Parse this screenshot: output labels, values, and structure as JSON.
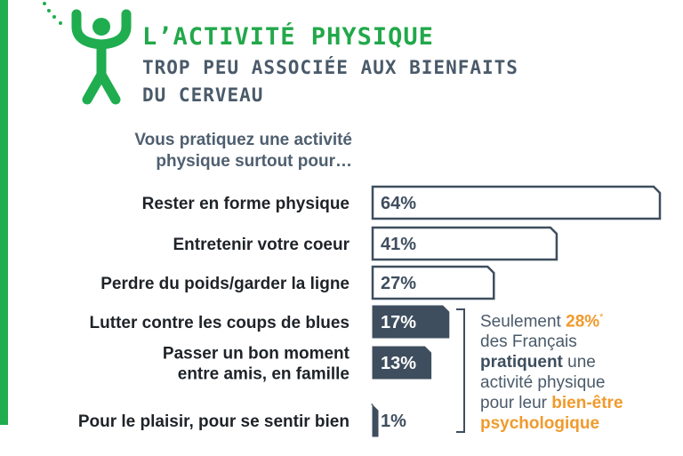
{
  "header": {
    "title": "L’ACTIVITÉ PHYSIQUE",
    "subtitle_line1": "TROP PEU ASSOCIÉE AUX BIENFAITS",
    "subtitle_line2": "DU CERVEAU"
  },
  "question": {
    "line1": "Vous pratiquez une activité",
    "line2": "physique surtout pour…"
  },
  "chart_data": {
    "type": "bar",
    "orientation": "horizontal",
    "categories": [
      [
        "Rester en forme physique"
      ],
      [
        "Entretenir votre coeur"
      ],
      [
        "Perdre du poids/garder la ligne"
      ],
      [
        "Lutter contre les coups de blues"
      ],
      [
        "Passer un bon moment",
        "entre amis, en famille"
      ],
      [
        "Pour le plaisir, pour se sentir bien"
      ]
    ],
    "values": [
      64,
      41,
      27,
      17,
      13,
      1
    ],
    "labels": [
      "64%",
      "41%",
      "27%",
      "17%",
      "13%",
      "1%"
    ],
    "highlighted": [
      false,
      false,
      false,
      true,
      true,
      true
    ],
    "xlim": [
      0,
      64
    ]
  },
  "callout": {
    "prefix": "Seulement ",
    "percent": "28%",
    "asterisk": "*",
    "line2": "des Français",
    "bold_word": "pratiquent",
    "line3_rest": " une",
    "line4": "activité physique",
    "line5_start": "pour leur ",
    "highlight1": "bien-être",
    "highlight2": "psychologique"
  },
  "colors": {
    "green": "#1fad4f",
    "slate": "#4f5f70",
    "orange": "#f09a2c",
    "bar_outline": "#3e4e5e"
  },
  "icons": [
    "person-arms-up-icon",
    "dotted-arc-decoration"
  ]
}
